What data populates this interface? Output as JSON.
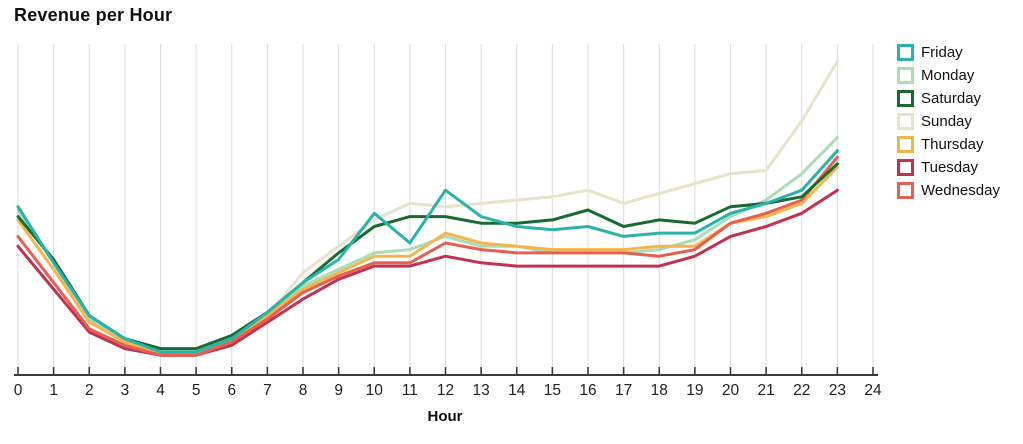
{
  "title": "Revenue per Hour",
  "x_axis_label": "Hour",
  "chart_data": {
    "type": "line",
    "title": "Revenue per Hour",
    "xlabel": "Hour",
    "ylabel": "",
    "xlim": [
      0,
      24
    ],
    "ylim": [
      0,
      100
    ],
    "y_axis_labels_visible": false,
    "grid": "vertical-only",
    "legend_position": "right",
    "x": [
      0,
      1,
      2,
      3,
      4,
      5,
      6,
      7,
      8,
      9,
      10,
      11,
      12,
      13,
      14,
      15,
      16,
      17,
      18,
      19,
      20,
      21,
      22,
      23
    ],
    "x_axis_ticks": [
      0,
      1,
      2,
      3,
      4,
      5,
      6,
      7,
      8,
      9,
      10,
      11,
      12,
      13,
      14,
      15,
      16,
      17,
      18,
      19,
      20,
      21,
      22,
      23,
      24
    ],
    "series": [
      {
        "name": "Friday",
        "color": "#2bb3a9",
        "values": [
          51,
          34,
          18,
          11,
          7,
          7,
          11,
          19,
          28,
          35,
          49,
          40,
          56,
          48,
          45,
          44,
          45,
          42,
          43,
          43,
          49,
          52,
          56,
          68
        ]
      },
      {
        "name": "Monday",
        "color": "#a8ddb6",
        "values": [
          50,
          34,
          17,
          10,
          7,
          7,
          11,
          18,
          27,
          32,
          37,
          38,
          42,
          39,
          39,
          37,
          37,
          37,
          38,
          41,
          48,
          53,
          61,
          72
        ]
      },
      {
        "name": "Saturday",
        "color": "#176b30",
        "values": [
          48,
          35,
          18,
          11,
          8,
          8,
          12,
          19,
          28,
          37,
          45,
          48,
          48,
          46,
          46,
          47,
          50,
          45,
          47,
          46,
          51,
          52,
          54,
          64
        ]
      },
      {
        "name": "Sunday",
        "color": "#e9e2ca",
        "values": [
          49,
          34,
          17,
          10,
          7,
          7,
          11,
          18,
          31,
          39,
          47,
          52,
          51,
          52,
          53,
          54,
          56,
          52,
          55,
          58,
          61,
          62,
          77,
          95
        ]
      },
      {
        "name": "Thursday",
        "color": "#f4b44e",
        "values": [
          47,
          32,
          16,
          10,
          6,
          6,
          10,
          18,
          26,
          31,
          36,
          36,
          43,
          40,
          39,
          38,
          38,
          38,
          39,
          39,
          46,
          48,
          52,
          63
        ]
      },
      {
        "name": "Tuesday",
        "color": "#c03250",
        "values": [
          39,
          26,
          13,
          8,
          6,
          6,
          9,
          16,
          23,
          29,
          33,
          33,
          36,
          34,
          33,
          33,
          33,
          33,
          33,
          36,
          42,
          45,
          49,
          56
        ]
      },
      {
        "name": "Wednesday",
        "color": "#e4614f",
        "values": [
          42,
          28,
          14,
          9,
          6,
          6,
          10,
          17,
          25,
          30,
          34,
          34,
          40,
          38,
          37,
          37,
          37,
          37,
          36,
          38,
          46,
          49,
          53,
          66
        ]
      }
    ],
    "draw_order": [
      "Sunday",
      "Monday",
      "Thursday",
      "Tuesday",
      "Wednesday",
      "Saturday",
      "Friday"
    ],
    "axis_color": "#3b3b3b",
    "gridline_color": "#dcdcdc",
    "tick_label_color": "#222222"
  }
}
